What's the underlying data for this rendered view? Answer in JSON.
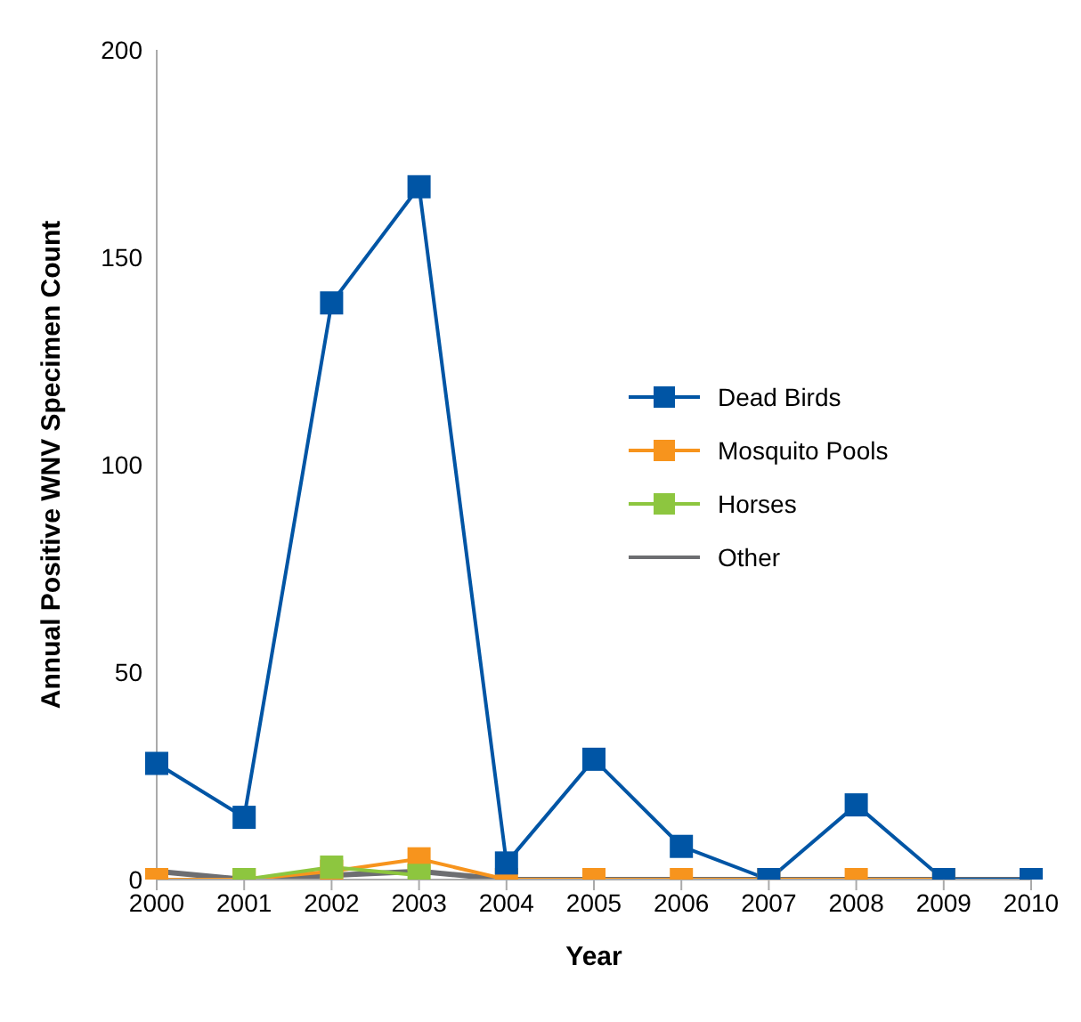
{
  "chart_data": {
    "type": "line",
    "xlabel": "Year",
    "ylabel": "Annual Positive WNV Specimen Count",
    "categories": [
      "2000",
      "2001",
      "2002",
      "2003",
      "2004",
      "2005",
      "2006",
      "2007",
      "2008",
      "2009",
      "2010"
    ],
    "series": [
      {
        "name": "Dead Birds",
        "color": "#0055a5",
        "values": [
          28,
          15,
          139,
          167,
          4,
          29,
          8,
          0,
          18,
          0,
          0
        ],
        "marker": "square"
      },
      {
        "name": "Mosquito Pools",
        "color": "#f7941d",
        "values": [
          0,
          0,
          2,
          5,
          0,
          0,
          0,
          0,
          0,
          0,
          0
        ],
        "marker": "square"
      },
      {
        "name": "Horses",
        "color": "#8dc63f",
        "values": [
          null,
          0,
          3,
          1,
          null,
          null,
          null,
          null,
          null,
          null,
          null
        ],
        "marker": "square"
      },
      {
        "name": "Other",
        "color": "#6d6e71",
        "values": [
          2,
          0,
          1,
          2,
          0,
          0,
          0,
          0,
          0,
          0,
          0
        ],
        "marker": "none"
      }
    ],
    "ylim": [
      0,
      200
    ],
    "yticks": [
      0,
      50,
      100,
      150,
      200
    ],
    "grid": false,
    "legend": "right"
  }
}
